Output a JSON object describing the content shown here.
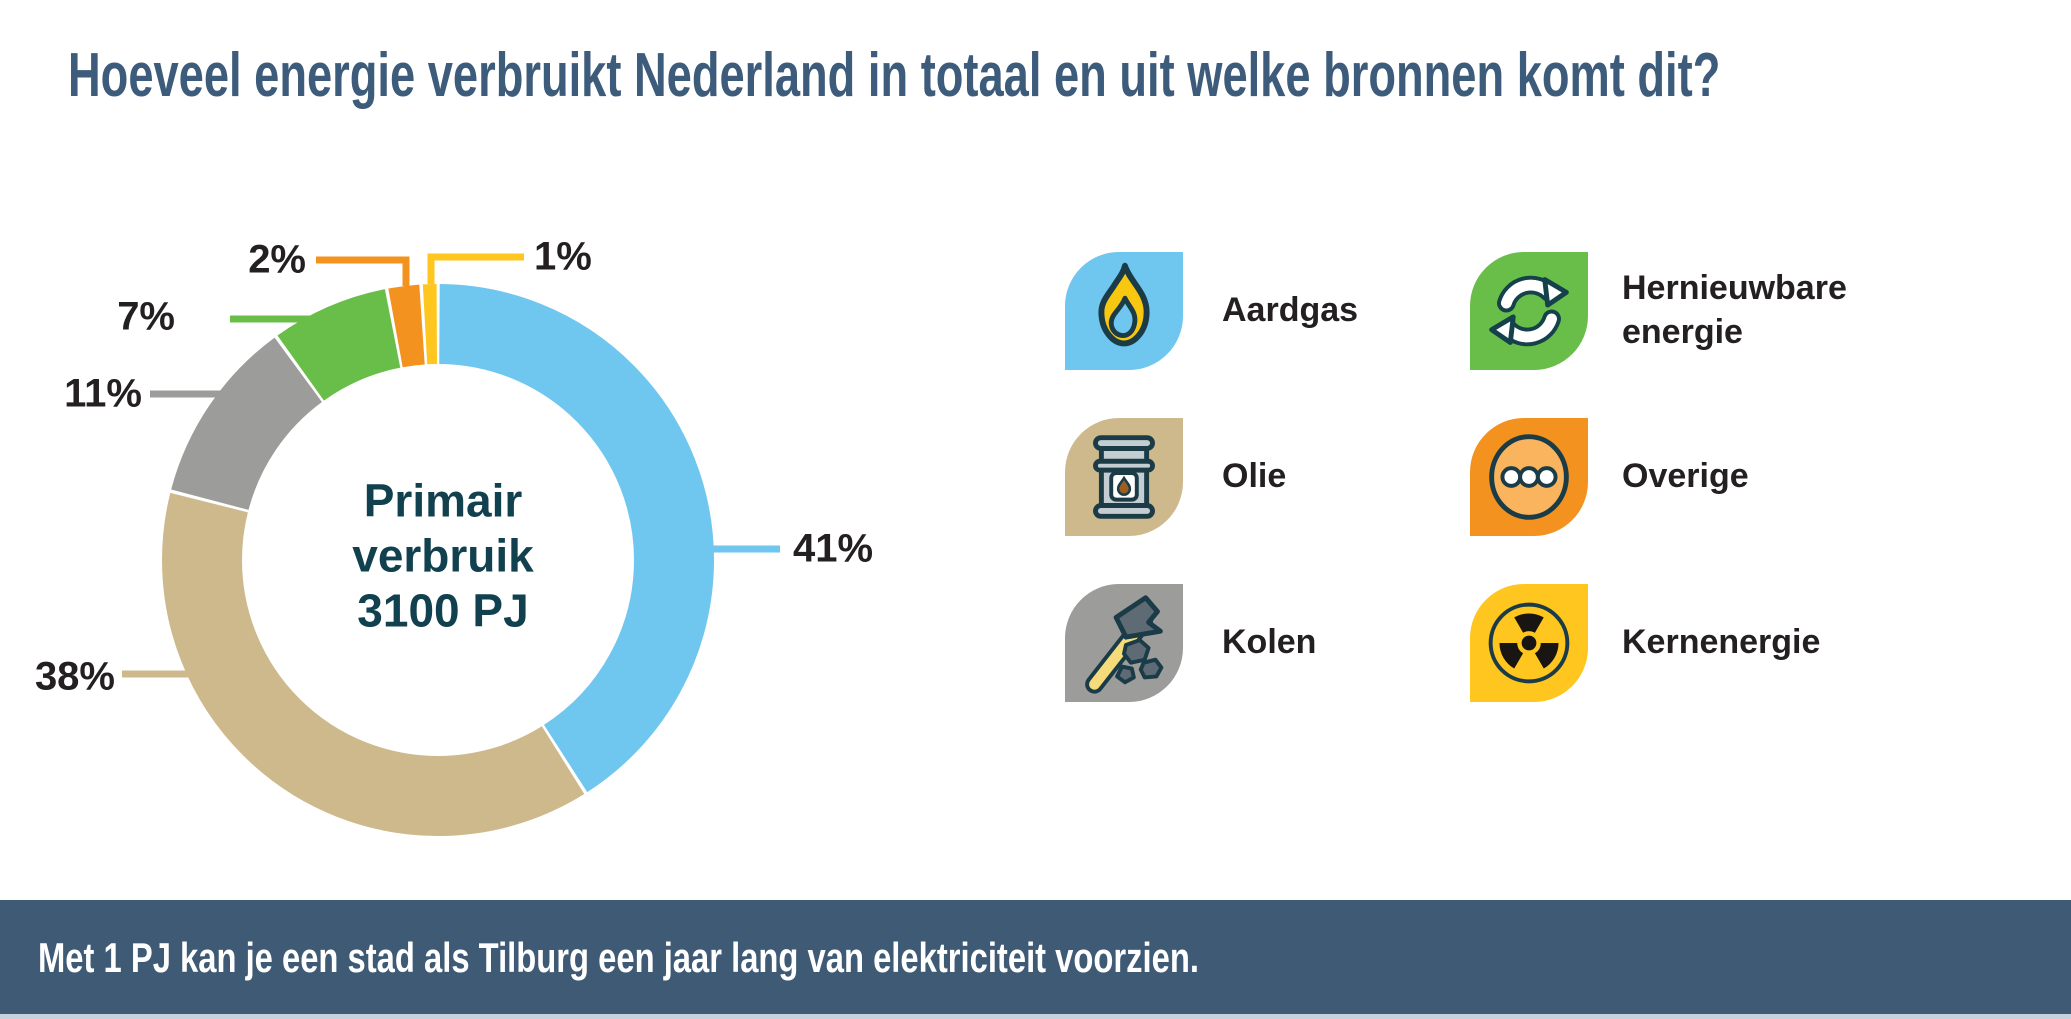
{
  "title": "Hoeveel energie verbruikt Nederland in totaal en uit welke bronnen komt dit?",
  "chart_data": {
    "type": "pie",
    "donut": true,
    "title": "Primair verbruik 3100 PJ",
    "center_label_lines": [
      "Primair",
      "verbruik",
      "3100 PJ"
    ],
    "unit": "%",
    "series": [
      {
        "name": "Aardgas",
        "value": 41,
        "color": "#6FC6EE"
      },
      {
        "name": "Olie",
        "value": 38,
        "color": "#CDB98C"
      },
      {
        "name": "Kolen",
        "value": 11,
        "color": "#9C9C9B"
      },
      {
        "name": "Hernieuwbare energie",
        "value": 7,
        "color": "#69BE4A"
      },
      {
        "name": "Overige",
        "value": 2,
        "color": "#F3921F"
      },
      {
        "name": "Kernenergie",
        "value": 1,
        "color": "#FEC61E"
      }
    ],
    "value_labels": [
      "41%",
      "38%",
      "11%",
      "7%",
      "2%",
      "1%"
    ],
    "legend_position": "right",
    "start_angle_deg": 0,
    "direction": "clockwise"
  },
  "legend": {
    "items": [
      {
        "label": "Aardgas",
        "icon": "flame-icon",
        "color": "#6FC6EE"
      },
      {
        "label": "Olie",
        "icon": "oil-barrel-icon",
        "color": "#CDB98C"
      },
      {
        "label": "Kolen",
        "icon": "hammer-coal-icon",
        "color": "#9C9C9B"
      },
      {
        "label": "Hernieuwbare energie",
        "icon": "recycle-icon",
        "color": "#69BE4A"
      },
      {
        "label": "Overige",
        "icon": "ellipsis-icon",
        "color": "#F3921F"
      },
      {
        "label": "Kernenergie",
        "icon": "radiation-icon",
        "color": "#FEC61E"
      }
    ]
  },
  "footer": {
    "text": "Met 1 PJ kan je een stad als Tilburg een jaar lang van elektriciteit voorzien."
  },
  "colors": {
    "title_text": "#3D5B7A",
    "footer_background": "#3E5A75",
    "center_text": "#11414F",
    "label_text": "#242021",
    "icon_outline": "#1B3C47"
  }
}
